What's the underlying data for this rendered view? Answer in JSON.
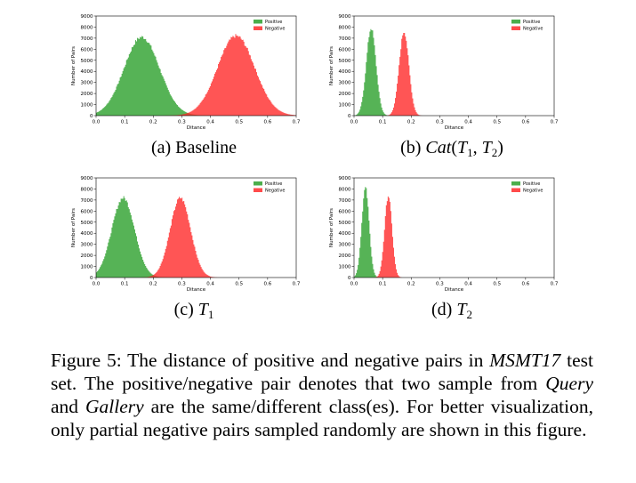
{
  "chart_data": [
    {
      "id": "a",
      "type": "area",
      "xlabel": "Ditance",
      "ylabel": "Number of Pairs",
      "xlim": [
        0.0,
        0.7
      ],
      "ylim": [
        0,
        9000
      ],
      "xticks": [
        "0.0",
        "0.1",
        "0.2",
        "0.3",
        "0.4",
        "0.5",
        "0.6",
        "0.7"
      ],
      "yticks": [
        "0",
        "1000",
        "2000",
        "3000",
        "4000",
        "5000",
        "6000",
        "7000",
        "8000",
        "9000"
      ],
      "legend_position": "top-right",
      "series": [
        {
          "name": "Positive",
          "color": "#2ca02c",
          "peak_x": 0.16,
          "peak_y": 7100,
          "spread": 0.062
        },
        {
          "name": "Negative",
          "color": "#ff2b2b",
          "peak_x": 0.49,
          "peak_y": 7200,
          "spread": 0.065
        }
      ]
    },
    {
      "id": "b",
      "type": "area",
      "xlabel": "Ditance",
      "ylabel": "Number of Pairs",
      "xlim": [
        0.0,
        0.7
      ],
      "ylim": [
        0,
        9000
      ],
      "xticks": [
        "0.0",
        "0.1",
        "0.2",
        "0.3",
        "0.4",
        "0.5",
        "0.6",
        "0.7"
      ],
      "yticks": [
        "0",
        "1000",
        "2000",
        "3000",
        "4000",
        "5000",
        "6000",
        "7000",
        "8000",
        "9000"
      ],
      "legend_position": "top-right",
      "series": [
        {
          "name": "Positive",
          "color": "#2ca02c",
          "peak_x": 0.06,
          "peak_y": 7900,
          "spread": 0.017
        },
        {
          "name": "Negative",
          "color": "#ff2b2b",
          "peak_x": 0.175,
          "peak_y": 7600,
          "spread": 0.017
        }
      ]
    },
    {
      "id": "c",
      "type": "area",
      "xlabel": "Ditance",
      "ylabel": "Number of Pairs",
      "xlim": [
        0.0,
        0.7
      ],
      "ylim": [
        0,
        9000
      ],
      "xticks": [
        "0.0",
        "0.1",
        "0.2",
        "0.3",
        "0.4",
        "0.5",
        "0.6",
        "0.7"
      ],
      "yticks": [
        "0",
        "1000",
        "2000",
        "3000",
        "4000",
        "5000",
        "6000",
        "7000",
        "8000",
        "9000"
      ],
      "legend_position": "top-right",
      "series": [
        {
          "name": "Positive",
          "color": "#2ca02c",
          "peak_x": 0.095,
          "peak_y": 7200,
          "spread": 0.04
        },
        {
          "name": "Negative",
          "color": "#ff2b2b",
          "peak_x": 0.295,
          "peak_y": 7200,
          "spread": 0.036
        }
      ]
    },
    {
      "id": "d",
      "type": "area",
      "xlabel": "Ditance",
      "ylabel": "Number of Pairs",
      "xlim": [
        0.0,
        0.7
      ],
      "ylim": [
        0,
        9000
      ],
      "xticks": [
        "0.0",
        "0.1",
        "0.2",
        "0.3",
        "0.4",
        "0.5",
        "0.6",
        "0.7"
      ],
      "yticks": [
        "0",
        "1000",
        "2000",
        "3000",
        "4000",
        "5000",
        "6000",
        "7000",
        "8000",
        "9000"
      ],
      "legend_position": "top-right",
      "series": [
        {
          "name": "Positive",
          "color": "#2ca02c",
          "peak_x": 0.04,
          "peak_y": 8100,
          "spread": 0.013
        },
        {
          "name": "Negative",
          "color": "#ff2b2b",
          "peak_x": 0.12,
          "peak_y": 7400,
          "spread": 0.013
        }
      ]
    }
  ],
  "subcaptions": {
    "a": {
      "label": "(a)",
      "text": "Baseline"
    },
    "b": {
      "label": "(b)",
      "func": "Cat",
      "open": "(",
      "t1": "T",
      "s1": "1",
      "comma": ", ",
      "t2": "T",
      "s2": "2",
      "close": ")"
    },
    "c": {
      "label": "(c)",
      "t": "T",
      "s": "1"
    },
    "d": {
      "label": "(d)",
      "t": "T",
      "s": "2"
    }
  },
  "caption": {
    "p1": "Figure 5: The distance of positive and negative pairs in ",
    "dataset": "MSMT17",
    "p2": " test set. The positive/negative pair denotes that two sample from ",
    "query": "Query",
    "p3": " and ",
    "gallery": "Gallery",
    "p4": " are the same/different class(es). For better visualization, only partial negative pairs sampled randomly are shown in this figure."
  }
}
